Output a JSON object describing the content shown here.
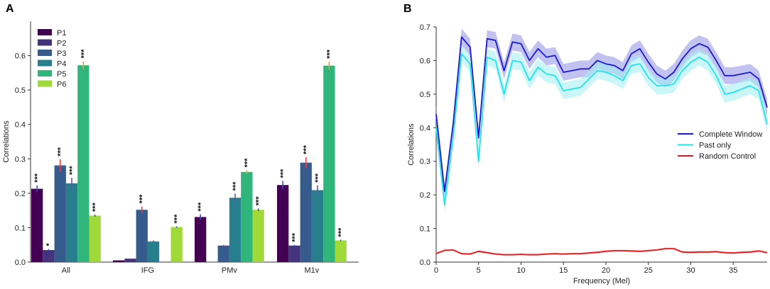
{
  "panels": {
    "a_label": "A",
    "b_label": "B"
  },
  "chart_data": [
    {
      "type": "bar",
      "panel": "A",
      "title": "",
      "xlabel": "",
      "ylabel": "Correlations",
      "ylim": [
        0,
        0.7
      ],
      "yticks": [
        "0.0",
        "0.1",
        "0.2",
        "0.3",
        "0.4",
        "0.5",
        "0.6"
      ],
      "categories": [
        "All",
        "IFG",
        "PMv",
        "M1v"
      ],
      "legend_position": "top-left",
      "series": [
        {
          "name": "P1",
          "color": "#440154",
          "values": [
            0.213,
            0.005,
            0.131,
            0.224
          ],
          "errors": [
            0.01,
            0.0,
            0.008,
            0.012
          ],
          "err_color": "#3b4cc0",
          "stars": [
            "***",
            "",
            "***",
            "***"
          ]
        },
        {
          "name": "P2",
          "color": "#46337e",
          "values": [
            0.035,
            0.01,
            0.001,
            0.048
          ],
          "errors": [
            0.003,
            0.0,
            0.0,
            0.002
          ],
          "err_color": "#3b4cc0",
          "stars": [
            "*",
            "",
            "",
            "***"
          ]
        },
        {
          "name": "P3",
          "color": "#365c8d",
          "values": [
            0.281,
            0.152,
            0.048,
            0.289
          ],
          "errors": [
            0.018,
            0.01,
            0.002,
            0.016
          ],
          "err_color": "#e0424f",
          "stars": [
            "***",
            "***",
            "",
            "***"
          ]
        },
        {
          "name": "P4",
          "color": "#277f8e",
          "values": [
            0.229,
            0.06,
            0.187,
            0.209
          ],
          "errors": [
            0.016,
            0.003,
            0.012,
            0.014
          ],
          "err_color": "#6a51a3",
          "stars": [
            "***",
            "",
            "***",
            "***"
          ]
        },
        {
          "name": "P5",
          "color": "#30b57a",
          "values": [
            0.572,
            0.0,
            0.262,
            0.571
          ],
          "errors": [
            0.012,
            0.0,
            0.005,
            0.012
          ],
          "err_color": "#f0a030",
          "stars": [
            "***",
            "",
            "***",
            "***"
          ]
        },
        {
          "name": "P6",
          "color": "#9fda3a",
          "values": [
            0.135,
            0.102,
            0.152,
            0.063
          ],
          "errors": [
            0.003,
            0.002,
            0.004,
            0.002
          ],
          "err_color": "#3b4cc0",
          "stars": [
            "***",
            "***",
            "***",
            "***"
          ]
        }
      ]
    },
    {
      "type": "line",
      "panel": "B",
      "title": "",
      "xlabel": "Frequency (Mel)",
      "ylabel": "Correlations",
      "xlim": [
        0,
        39
      ],
      "ylim": [
        0,
        0.7
      ],
      "xticks": [
        0,
        5,
        10,
        15,
        20,
        25,
        30,
        35
      ],
      "yticks": [
        "0.0",
        "0.1",
        "0.2",
        "0.3",
        "0.4",
        "0.5",
        "0.6",
        "0.7"
      ],
      "legend_position": "right",
      "x": [
        0,
        1,
        2,
        3,
        4,
        5,
        6,
        7,
        8,
        9,
        10,
        11,
        12,
        13,
        14,
        15,
        16,
        17,
        18,
        19,
        20,
        21,
        22,
        23,
        24,
        25,
        26,
        27,
        28,
        29,
        30,
        31,
        32,
        33,
        34,
        35,
        36,
        37,
        38,
        39
      ],
      "series": [
        {
          "name": "Complete Window",
          "color": "#1a1ad6",
          "band_color": "#8f8fe6",
          "values": [
            0.44,
            0.21,
            0.41,
            0.67,
            0.64,
            0.37,
            0.665,
            0.66,
            0.57,
            0.655,
            0.65,
            0.6,
            0.635,
            0.61,
            0.615,
            0.565,
            0.57,
            0.575,
            0.575,
            0.6,
            0.59,
            0.585,
            0.57,
            0.62,
            0.635,
            0.595,
            0.56,
            0.545,
            0.565,
            0.605,
            0.635,
            0.65,
            0.64,
            0.6,
            0.555,
            0.555,
            0.56,
            0.565,
            0.545,
            0.46
          ],
          "band": [
            0.025,
            0.02,
            0.02,
            0.025,
            0.025,
            0.025,
            0.025,
            0.025,
            0.025,
            0.025,
            0.025,
            0.025,
            0.025,
            0.025,
            0.025,
            0.025,
            0.025,
            0.025,
            0.025,
            0.025,
            0.025,
            0.025,
            0.025,
            0.025,
            0.025,
            0.025,
            0.025,
            0.025,
            0.025,
            0.025,
            0.025,
            0.025,
            0.025,
            0.025,
            0.025,
            0.025,
            0.025,
            0.025,
            0.025,
            0.025
          ]
        },
        {
          "name": "Past only",
          "color": "#22e3ec",
          "band_color": "#9feff3",
          "values": [
            0.4,
            0.17,
            0.37,
            0.62,
            0.59,
            0.3,
            0.61,
            0.6,
            0.5,
            0.6,
            0.595,
            0.54,
            0.58,
            0.56,
            0.555,
            0.51,
            0.515,
            0.52,
            0.545,
            0.57,
            0.565,
            0.555,
            0.54,
            0.585,
            0.59,
            0.55,
            0.525,
            0.525,
            0.53,
            0.57,
            0.595,
            0.61,
            0.595,
            0.555,
            0.5,
            0.505,
            0.515,
            0.525,
            0.51,
            0.41
          ],
          "band": [
            0.025,
            0.02,
            0.02,
            0.025,
            0.025,
            0.025,
            0.025,
            0.025,
            0.025,
            0.025,
            0.025,
            0.025,
            0.025,
            0.025,
            0.025,
            0.025,
            0.025,
            0.025,
            0.025,
            0.025,
            0.025,
            0.025,
            0.025,
            0.025,
            0.025,
            0.025,
            0.025,
            0.025,
            0.025,
            0.025,
            0.025,
            0.025,
            0.025,
            0.025,
            0.025,
            0.025,
            0.025,
            0.025,
            0.025,
            0.025
          ]
        },
        {
          "name": "Random Control",
          "color": "#e41a1c",
          "band_color": "#f5a0a0",
          "values": [
            0.025,
            0.035,
            0.036,
            0.025,
            0.024,
            0.032,
            0.028,
            0.024,
            0.022,
            0.022,
            0.023,
            0.022,
            0.022,
            0.024,
            0.025,
            0.024,
            0.025,
            0.025,
            0.027,
            0.029,
            0.032,
            0.034,
            0.034,
            0.033,
            0.032,
            0.034,
            0.036,
            0.04,
            0.04,
            0.03,
            0.029,
            0.03,
            0.03,
            0.031,
            0.028,
            0.027,
            0.029,
            0.03,
            0.033,
            0.028
          ],
          "band": [
            0.003,
            0.003,
            0.003,
            0.003,
            0.003,
            0.003,
            0.003,
            0.003,
            0.003,
            0.003,
            0.003,
            0.003,
            0.003,
            0.003,
            0.003,
            0.003,
            0.003,
            0.003,
            0.003,
            0.003,
            0.003,
            0.003,
            0.003,
            0.003,
            0.003,
            0.003,
            0.003,
            0.003,
            0.003,
            0.003,
            0.003,
            0.003,
            0.003,
            0.003,
            0.003,
            0.003,
            0.003,
            0.003,
            0.003,
            0.003
          ]
        }
      ]
    }
  ]
}
